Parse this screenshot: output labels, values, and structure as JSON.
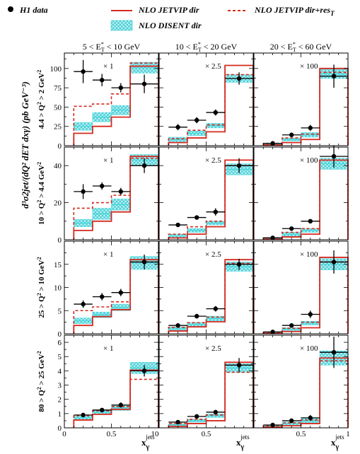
{
  "legend": {
    "data": "H1 data",
    "jetvip_dir": "NLO JETVIP dir",
    "jetvip_dir_res": "NLO JETVIP dir+res",
    "jetvip_dir_res_sub": "T",
    "disent_dir": "NLO DISENT dir"
  },
  "colors": {
    "jetvip_dir": "#d42a1f",
    "jetvip_dir_res": "#d42a1f",
    "disent_band": "#44d6dc",
    "data": "#000000"
  },
  "col_titles": [
    {
      "pre": "5 < E",
      "sup": "*",
      "sub": "T",
      "post": " < 10 GeV"
    },
    {
      "pre": "10 < E",
      "sup": "*",
      "sub": "T",
      "post": " < 20 GeV"
    },
    {
      "pre": "20 < E",
      "sup": "*",
      "sub": "T",
      "post": " < 60 GeV"
    }
  ],
  "row_labels": [
    {
      "text": "4.4 > Q",
      "sup": "2",
      "post": " > 2 GeV",
      "sup2": "2"
    },
    {
      "text": "10 > Q",
      "sup": "2",
      "post": " > 4.4 GeV",
      "sup2": "2"
    },
    {
      "text": "25 > Q",
      "sup": "2",
      "post": " > 10 GeV",
      "sup2": "2"
    },
    {
      "text": "80 > Q",
      "sup": "2",
      "post": " > 25 GeV",
      "sup2": "2"
    }
  ],
  "y_axis_label": "d³σ2jet/(dQ² dET dxγ)   (pb GeV⁻³)",
  "x_axis_label": "xγ jets",
  "chart_data": {
    "type": "histogram-grid",
    "x_bins": [
      [
        0.1,
        0.3
      ],
      [
        0.3,
        0.5
      ],
      [
        0.5,
        0.7
      ],
      [
        0.7,
        1.0
      ]
    ],
    "x_points": [
      0.2,
      0.4,
      0.6,
      0.85
    ],
    "x_ticks": [
      "0",
      "0.5",
      "1"
    ],
    "xlim": [
      0,
      1
    ],
    "rows": [
      {
        "ylim": [
          0,
          120
        ],
        "yticks": [
          0,
          25,
          50,
          75,
          100
        ]
      },
      {
        "ylim": [
          0,
          50
        ],
        "yticks": [
          0,
          20,
          40
        ]
      },
      {
        "ylim": [
          0,
          20
        ],
        "yticks": [
          0,
          5,
          10,
          15
        ]
      },
      {
        "ylim": [
          0,
          6.5
        ],
        "yticks": [
          0,
          1,
          2,
          3,
          4,
          5,
          6
        ]
      }
    ],
    "panels": [
      [
        {
          "scale": "× 1",
          "data": [
            96,
            85,
            75,
            80
          ],
          "err": [
            15,
            8,
            6,
            12
          ],
          "jetvip": [
            16,
            25,
            37,
            103
          ],
          "jetvip_res": [
            51,
            54,
            67,
            107
          ],
          "disent": [
            25,
            37,
            46,
            101
          ],
          "disent_err": [
            5,
            6,
            6,
            7
          ]
        },
        {
          "scale": "× 2.5",
          "data": [
            24,
            33,
            43,
            87
          ],
          "err": [
            4,
            4,
            4,
            8
          ],
          "jetvip": [
            4,
            10,
            18,
            104
          ],
          "jetvip_res": [
            9,
            20,
            27,
            92
          ],
          "disent": [
            8,
            16,
            26,
            87
          ],
          "disent_err": [
            3,
            3,
            3,
            5
          ]
        },
        {
          "scale": "× 100",
          "data": [
            3,
            14,
            23,
            90
          ],
          "err": [
            2,
            3,
            4,
            15
          ],
          "jetvip": [
            1,
            4,
            8,
            100
          ],
          "jetvip_res": [
            3,
            10,
            15,
            95
          ],
          "disent": [
            2,
            8,
            14,
            93
          ],
          "disent_err": [
            1,
            2,
            3,
            6
          ]
        }
      ],
      [
        {
          "scale": "× 1",
          "data": [
            26,
            29,
            26,
            40
          ],
          "err": [
            4,
            2,
            2,
            4
          ],
          "jetvip": [
            5,
            10,
            15,
            45
          ],
          "jetvip_res": [
            17,
            20,
            24,
            44
          ],
          "disent": [
            9,
            14,
            19,
            43
          ],
          "disent_err": [
            2,
            3,
            3,
            3
          ]
        },
        {
          "scale": "× 2.5",
          "data": [
            8,
            12,
            15,
            40
          ],
          "err": [
            1,
            1,
            2,
            4
          ],
          "jetvip": [
            1,
            3,
            7,
            43
          ],
          "jetvip_res": [
            3,
            7,
            10,
            40
          ],
          "disent": [
            2,
            5,
            9,
            38
          ],
          "disent_err": [
            1,
            1,
            1,
            3
          ]
        },
        {
          "scale": "× 100",
          "data": [
            1,
            6,
            10,
            45
          ],
          "err": [
            0.5,
            1,
            1,
            6
          ],
          "jetvip": [
            0.3,
            1.5,
            3,
            43
          ],
          "jetvip_res": [
            1,
            4,
            6,
            43
          ],
          "disent": [
            0.8,
            3,
            5,
            41
          ],
          "disent_err": [
            0.4,
            1,
            1,
            3
          ]
        }
      ],
      [
        {
          "scale": "× 1",
          "data": [
            6.4,
            8.0,
            8.9,
            15.5
          ],
          "err": [
            0.8,
            0.8,
            0.8,
            1.6
          ],
          "jetvip": [
            1.8,
            3.7,
            5.2,
            16.0
          ],
          "jetvip_res": [
            5.0,
            5.8,
            6.9,
            15.5
          ],
          "disent": [
            2.8,
            4.1,
            5.7,
            15.3
          ],
          "disent_err": [
            0.6,
            0.6,
            0.7,
            1.4
          ]
        },
        {
          "scale": "× 2.5",
          "data": [
            1.8,
            3.8,
            5.4,
            15.0
          ],
          "err": [
            0.3,
            0.5,
            0.6,
            1.2
          ],
          "jetvip": [
            0.6,
            1.5,
            2.6,
            16.0
          ],
          "jetvip_res": [
            1.4,
            2.4,
            3.6,
            15.2
          ],
          "disent": [
            1.1,
            2.0,
            3.3,
            14.5
          ],
          "disent_err": [
            0.4,
            0.4,
            0.5,
            1.0
          ]
        },
        {
          "scale": "× 100",
          "data": [
            0.4,
            1.8,
            4.2,
            15.5
          ],
          "err": [
            0.2,
            0.4,
            0.8,
            2.5
          ],
          "jetvip": [
            0.1,
            0.5,
            1.3,
            16.5
          ],
          "jetvip_res": [
            0.3,
            1.2,
            2.5,
            15.5
          ],
          "disent": [
            0.2,
            1.0,
            2.3,
            15.0
          ],
          "disent_err": [
            0.1,
            0.3,
            0.4,
            1.2
          ]
        }
      ],
      [
        {
          "scale": "× 1",
          "data": [
            0.9,
            1.25,
            1.6,
            4.0
          ],
          "err": [
            0.12,
            0.12,
            0.18,
            0.4
          ],
          "jetvip": [
            0.55,
            0.95,
            1.3,
            4.05
          ],
          "jetvip_res": [
            0.85,
            1.2,
            1.5,
            3.4
          ],
          "disent": [
            0.7,
            1.1,
            1.4,
            4.2
          ],
          "disent_err": [
            0.12,
            0.12,
            0.18,
            0.4
          ]
        },
        {
          "scale": "× 2.5",
          "data": [
            0.4,
            0.8,
            1.1,
            4.4
          ],
          "err": [
            0.1,
            0.12,
            0.15,
            0.5
          ],
          "jetvip": [
            0.1,
            0.3,
            0.5,
            4.6
          ],
          "jetvip_res": [
            0.3,
            0.6,
            0.9,
            3.9
          ],
          "disent": [
            0.2,
            0.5,
            0.85,
            4.2
          ],
          "disent_err": [
            0.08,
            0.1,
            0.12,
            0.3
          ]
        },
        {
          "scale": "× 100",
          "data": [
            0.2,
            0.5,
            0.7,
            5.3
          ],
          "err": [
            0.1,
            0.15,
            0.2,
            1.1
          ],
          "jetvip": [
            0.05,
            0.15,
            0.3,
            4.9
          ],
          "jetvip_res": [
            0.15,
            0.35,
            0.55,
            4.7
          ],
          "disent": [
            0.1,
            0.3,
            0.5,
            4.9
          ],
          "disent_err": [
            0.05,
            0.1,
            0.15,
            0.5
          ]
        }
      ]
    ]
  }
}
